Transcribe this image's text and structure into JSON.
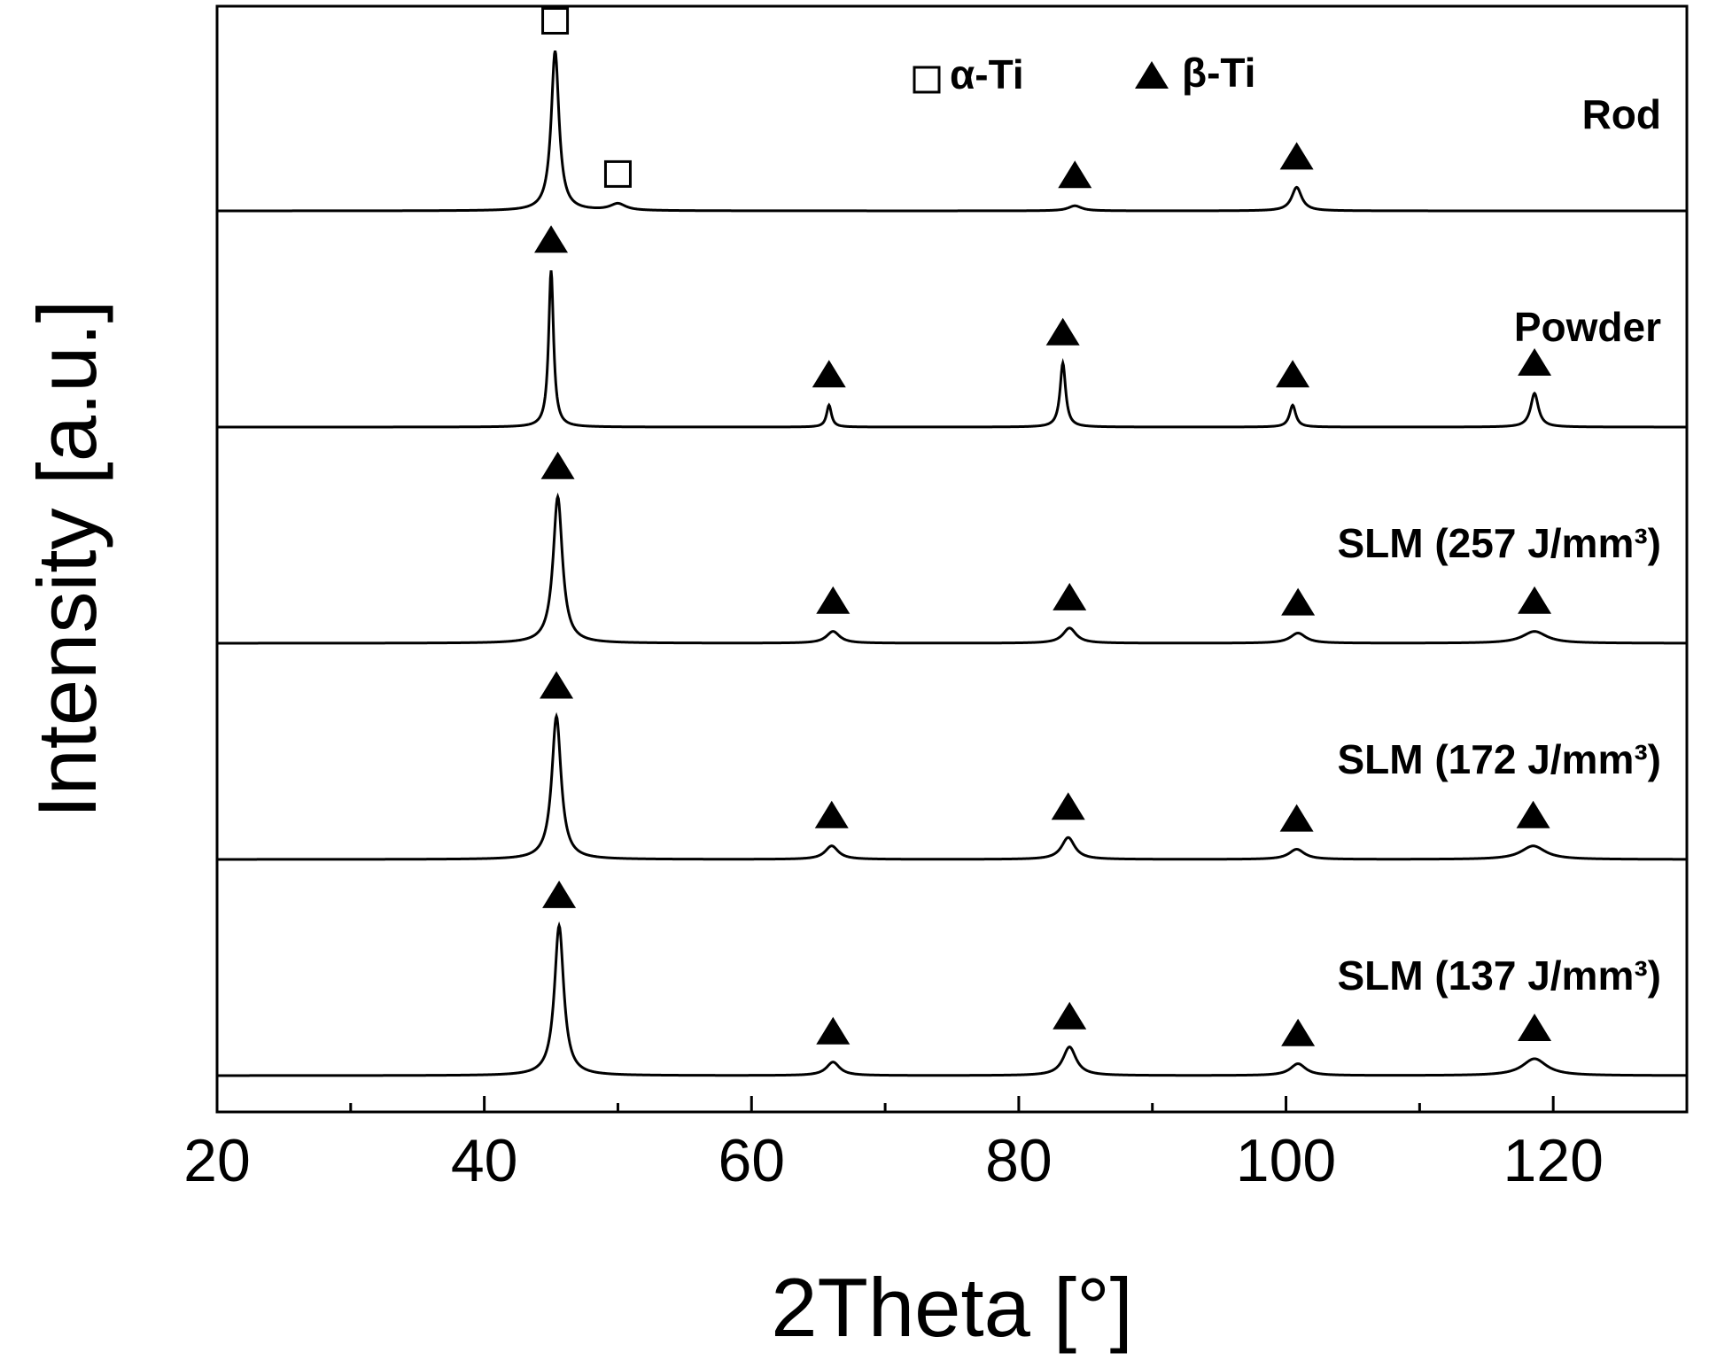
{
  "chart_data": {
    "type": "line",
    "xlabel": "2Theta [°]",
    "ylabel": "Intensity [a.u.]",
    "xlim": [
      20,
      130
    ],
    "x_ticks": [
      20,
      40,
      60,
      80,
      100,
      120
    ],
    "x_minor_ticks": [
      30,
      50,
      70,
      90,
      110
    ],
    "y_ticks_shown": false,
    "legend": {
      "placement": "top",
      "entries": [
        {
          "marker": "open-square",
          "label": "α-Ti"
        },
        {
          "marker": "filled-triangle",
          "label": "β-Ti"
        }
      ]
    },
    "series": [
      {
        "name": "Rod",
        "baseline_offset": 4,
        "peaks": [
          {
            "x": 45.3,
            "height": 0.95,
            "width": 0.35,
            "phase": "α-Ti"
          },
          {
            "x": 50.0,
            "height": 0.04,
            "width": 0.7,
            "phase": "α-Ti"
          },
          {
            "x": 84.2,
            "height": 0.03,
            "width": 0.6,
            "phase": "β-Ti"
          },
          {
            "x": 100.8,
            "height": 0.14,
            "width": 0.45,
            "phase": "β-Ti"
          }
        ]
      },
      {
        "name": "Powder",
        "baseline_offset": 3,
        "peaks": [
          {
            "x": 45.0,
            "height": 0.93,
            "width": 0.22,
            "phase": "β-Ti"
          },
          {
            "x": 65.8,
            "height": 0.13,
            "width": 0.22,
            "phase": "β-Ti"
          },
          {
            "x": 83.3,
            "height": 0.38,
            "width": 0.25,
            "phase": "β-Ti"
          },
          {
            "x": 100.5,
            "height": 0.13,
            "width": 0.28,
            "phase": "β-Ti"
          },
          {
            "x": 118.6,
            "height": 0.2,
            "width": 0.35,
            "phase": "β-Ti"
          }
        ]
      },
      {
        "name": "SLM (257 J/mm³)",
        "baseline_offset": 2,
        "peaks": [
          {
            "x": 45.5,
            "height": 0.87,
            "width": 0.42,
            "phase": "β-Ti"
          },
          {
            "x": 66.1,
            "height": 0.07,
            "width": 0.6,
            "phase": "β-Ti"
          },
          {
            "x": 83.8,
            "height": 0.09,
            "width": 0.6,
            "phase": "β-Ti"
          },
          {
            "x": 100.9,
            "height": 0.06,
            "width": 0.7,
            "phase": "β-Ti"
          },
          {
            "x": 118.6,
            "height": 0.07,
            "width": 1.1,
            "phase": "β-Ti"
          }
        ]
      },
      {
        "name": "SLM (172 J/mm³)",
        "baseline_offset": 1,
        "peaks": [
          {
            "x": 45.4,
            "height": 0.85,
            "width": 0.42,
            "phase": "β-Ti"
          },
          {
            "x": 66.0,
            "height": 0.08,
            "width": 0.6,
            "phase": "β-Ti"
          },
          {
            "x": 83.7,
            "height": 0.13,
            "width": 0.6,
            "phase": "β-Ti"
          },
          {
            "x": 100.8,
            "height": 0.06,
            "width": 0.7,
            "phase": "β-Ti"
          },
          {
            "x": 118.5,
            "height": 0.08,
            "width": 1.1,
            "phase": "β-Ti"
          }
        ]
      },
      {
        "name": "SLM (137 J/mm³)",
        "baseline_offset": 0,
        "peaks": [
          {
            "x": 45.6,
            "height": 0.89,
            "width": 0.42,
            "phase": "β-Ti"
          },
          {
            "x": 66.1,
            "height": 0.08,
            "width": 0.6,
            "phase": "β-Ti"
          },
          {
            "x": 83.8,
            "height": 0.17,
            "width": 0.6,
            "phase": "β-Ti"
          },
          {
            "x": 100.9,
            "height": 0.07,
            "width": 0.7,
            "phase": "β-Ti"
          },
          {
            "x": 118.6,
            "height": 0.1,
            "width": 1.1,
            "phase": "β-Ti"
          }
        ]
      }
    ]
  }
}
